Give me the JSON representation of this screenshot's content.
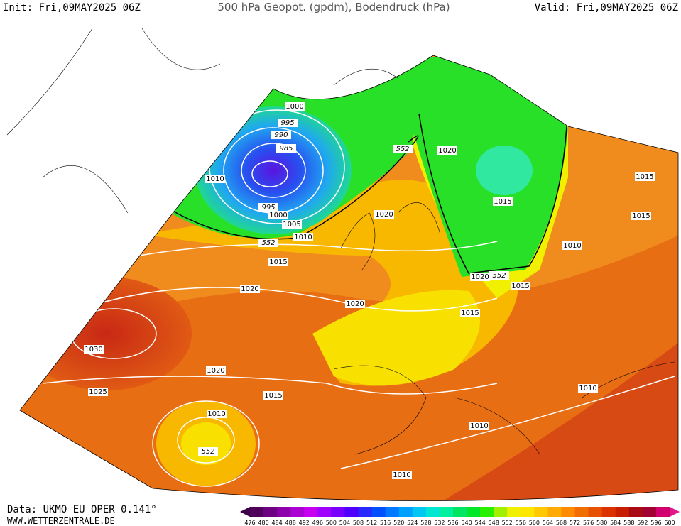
{
  "header": {
    "init": "Init: Fri,09MAY2025 06Z",
    "title": "500 hPa Geopot. (gpdm), Bodendruck (hPa)",
    "valid": "Valid: Fri,09MAY2025 06Z"
  },
  "footer": {
    "data": "Data: UKMO EU OPER 0.141°",
    "site": "WWW.WETTERZENTRALE.DE"
  },
  "colorbar": {
    "labels": [
      476,
      480,
      484,
      488,
      492,
      496,
      500,
      504,
      508,
      512,
      516,
      520,
      524,
      528,
      532,
      536,
      540,
      544,
      548,
      552,
      556,
      560,
      564,
      568,
      572,
      576,
      580,
      584,
      588,
      592,
      596,
      600
    ]
  },
  "contour_labels": [
    1000,
    995,
    990,
    985,
    1010,
    995,
    1000,
    1005,
    1010,
    552,
    1015,
    1020,
    552,
    1020,
    1020,
    1015,
    1015,
    1015,
    1010,
    1020,
    552,
    1015,
    1015,
    1020,
    1030,
    1020,
    1025,
    1015,
    1010,
    552,
    1010,
    1010,
    1010
  ]
}
